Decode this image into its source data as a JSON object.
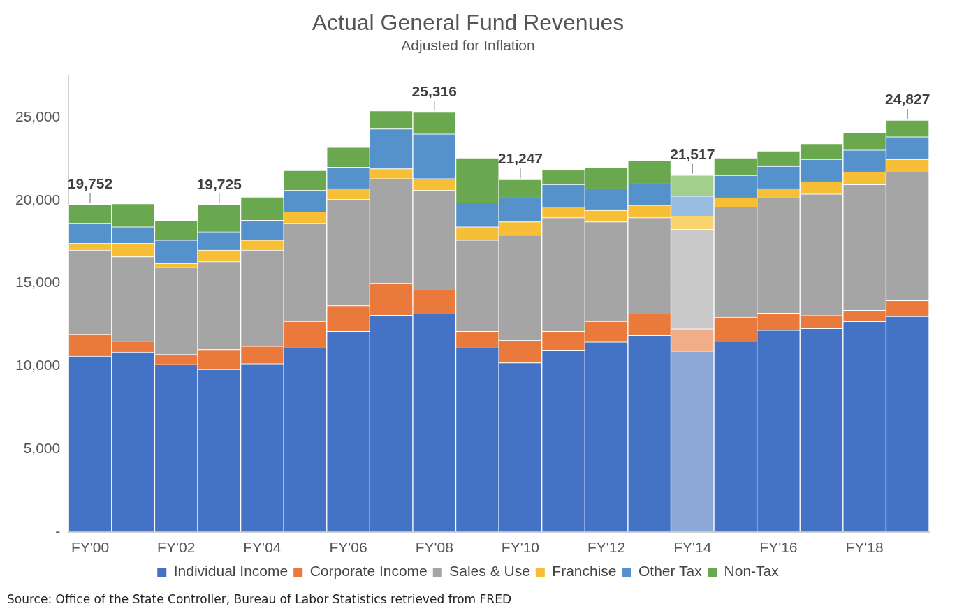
{
  "chart_data": {
    "type": "bar",
    "title": "Actual General Fund Revenues",
    "subtitle": "Adjusted for Inflation",
    "categories": [
      "FY'00",
      null,
      "FY'02",
      null,
      "FY'04",
      null,
      "FY'06",
      null,
      "FY'08",
      null,
      "FY'10",
      null,
      "FY'12",
      null,
      "FY'14",
      null,
      "FY'16",
      null,
      "FY'18",
      null
    ],
    "stacked": true,
    "series": [
      {
        "name": "Individual Income",
        "color": "#4472c4",
        "colors": [
          "#4472c4",
          "#4472c4",
          "#4472c4",
          "#4472c4",
          "#4472c4",
          "#4472c4",
          "#4472c4",
          "#4472c4",
          "#4472c4",
          "#4472c4",
          "#4472c4",
          "#4472c4",
          "#4472c4",
          "#4472c4",
          "#8ca8d6",
          "#4472c4",
          "#4472c4",
          "#4472c4",
          "#4472c4",
          "#4472c4"
        ],
        "values": [
          10600,
          10850,
          10100,
          9800,
          10150,
          11100,
          12100,
          13070,
          13150,
          11100,
          10200,
          10970,
          11450,
          11850,
          10900,
          11500,
          12170,
          12270,
          12690,
          13000
        ]
      },
      {
        "name": "Corporate Income",
        "color": "#e97a3c",
        "colors": [
          "#e97a3c",
          "#e97a3c",
          "#e97a3c",
          "#e97a3c",
          "#e97a3c",
          "#e97a3c",
          "#e97a3c",
          "#e97a3c",
          "#e97a3c",
          "#e97a3c",
          "#e97a3c",
          "#e97a3c",
          "#e97a3c",
          "#e97a3c",
          "#f0ad88",
          "#e97a3c",
          "#e97a3c",
          "#e97a3c",
          "#e97a3c",
          "#e97a3c"
        ],
        "values": [
          1300,
          650,
          600,
          1200,
          1050,
          1600,
          1550,
          1930,
          1450,
          1000,
          1350,
          1130,
          1250,
          1300,
          1350,
          1450,
          1030,
          780,
          680,
          950
        ]
      },
      {
        "name": "Sales & Use",
        "color": "#a5a5a5",
        "colors": [
          "#a5a5a5",
          "#a5a5a5",
          "#a5a5a5",
          "#a5a5a5",
          "#a5a5a5",
          "#a5a5a5",
          "#a5a5a5",
          "#a5a5a5",
          "#a5a5a5",
          "#a5a5a5",
          "#a5a5a5",
          "#a5a5a5",
          "#a5a5a5",
          "#a5a5a5",
          "#c9c9c9",
          "#a5a5a5",
          "#a5a5a5",
          "#a5a5a5",
          "#a5a5a5",
          "#a5a5a5"
        ],
        "values": [
          5100,
          5100,
          5250,
          5300,
          5800,
          5900,
          6400,
          6300,
          6000,
          5500,
          6350,
          6850,
          6000,
          5800,
          6000,
          6650,
          6950,
          7330,
          7570,
          7760
        ]
      },
      {
        "name": "Franchise",
        "color": "#f7bf35",
        "colors": [
          "#f7bf35",
          "#f7bf35",
          "#f7bf35",
          "#f7bf35",
          "#f7bf35",
          "#f7bf35",
          "#f7bf35",
          "#f7bf35",
          "#f7bf35",
          "#f7bf35",
          "#f7bf35",
          "#f7bf35",
          "#f7bf35",
          "#f7bf35",
          "#f8d36e",
          "#f7bf35",
          "#f7bf35",
          "#f7bf35",
          "#f7bf35",
          "#f7bf35"
        ],
        "values": [
          400,
          800,
          250,
          700,
          600,
          700,
          650,
          600,
          700,
          800,
          800,
          650,
          700,
          750,
          800,
          550,
          550,
          740,
          770,
          760
        ]
      },
      {
        "name": "Other Tax",
        "color": "#5592cb",
        "colors": [
          "#5592cb",
          "#5592cb",
          "#5592cb",
          "#5592cb",
          "#5592cb",
          "#5592cb",
          "#5592cb",
          "#5592cb",
          "#5592cb",
          "#5592cb",
          "#5592cb",
          "#5592cb",
          "#5592cb",
          "#5592cb",
          "#98bde3",
          "#5592cb",
          "#5592cb",
          "#5592cb",
          "#5592cb",
          "#5592cb"
        ],
        "values": [
          1200,
          1000,
          1400,
          1100,
          1200,
          1300,
          1300,
          2400,
          2700,
          1450,
          1450,
          1350,
          1300,
          1300,
          1200,
          1350,
          1350,
          1350,
          1320,
          1360
        ]
      },
      {
        "name": "Non-Tax",
        "color": "#6aa84f",
        "colors": [
          "#6aa84f",
          "#6aa84f",
          "#6aa84f",
          "#6aa84f",
          "#6aa84f",
          "#6aa84f",
          "#6aa84f",
          "#6aa84f",
          "#6aa84f",
          "#6aa84f",
          "#6aa84f",
          "#6aa84f",
          "#6aa84f",
          "#6aa84f",
          "#a3cf8d",
          "#6aa84f",
          "#6aa84f",
          "#6aa84f",
          "#6aa84f",
          "#6aa84f"
        ],
        "values": [
          1152,
          1400,
          1150,
          1625,
          1400,
          1200,
          1200,
          1100,
          1316,
          2700,
          1097,
          900,
          1300,
          1400,
          1267,
          1050,
          920,
          950,
          1060,
          997
        ]
      }
    ],
    "totals": [
      "19,752",
      null,
      null,
      "19,725",
      null,
      null,
      null,
      null,
      "25,316",
      null,
      "21,247",
      null,
      null,
      null,
      "21,517",
      null,
      null,
      null,
      null,
      "24,827"
    ],
    "ylim": [
      0,
      27500
    ],
    "yticks": [
      {
        "value": 0,
        "label": "-"
      },
      {
        "value": 5000,
        "label": "5,000"
      },
      {
        "value": 10000,
        "label": "10,000"
      },
      {
        "value": 15000,
        "label": "15,000"
      },
      {
        "value": 20000,
        "label": "20,000"
      },
      {
        "value": 25000,
        "label": "25,000"
      }
    ],
    "grid": "y",
    "legend": "bottom",
    "annotations": [
      "Source: Office of the State Controller, Bureau of Labor Statistics retrieved from FRED"
    ]
  }
}
